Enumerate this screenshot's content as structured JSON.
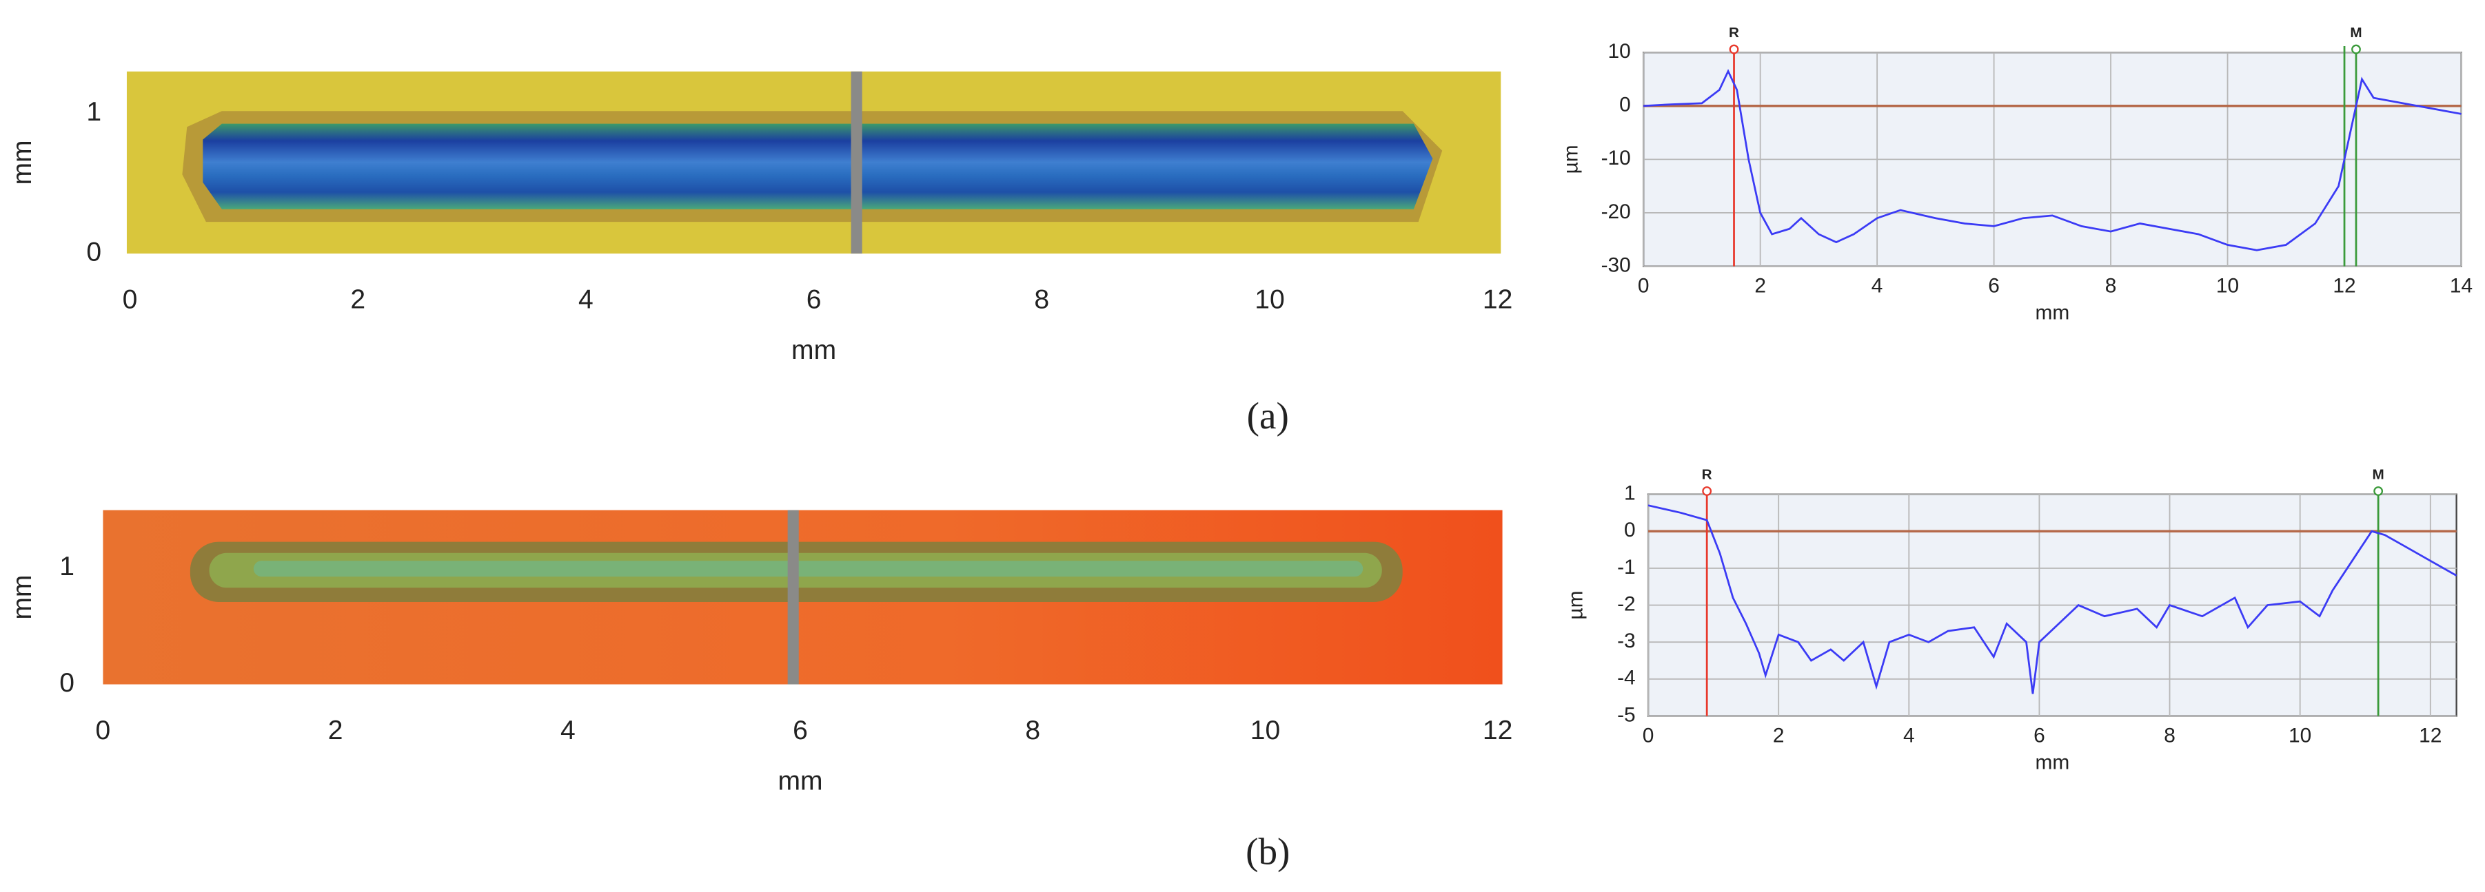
{
  "panel_labels": [
    "(a)",
    "(b)"
  ],
  "chart_data": [
    {
      "type": "image",
      "xlabel": "mm",
      "ylabel": "mm",
      "xlim": [
        0,
        12
      ],
      "xticks": [
        0,
        2,
        4,
        6,
        8,
        10,
        12
      ],
      "ylim": [
        0,
        1.3
      ],
      "yticks": [
        0,
        1
      ]
    },
    {
      "type": "line",
      "xlabel": "mm",
      "ylabel": "µm",
      "xlim": [
        0,
        14
      ],
      "xticks": [
        0,
        2,
        4,
        6,
        8,
        10,
        12,
        14
      ],
      "ylim": [
        -30,
        10
      ],
      "yticks": [
        -30,
        -20,
        -10,
        0,
        10
      ],
      "grid": true,
      "hline": {
        "y": 0,
        "color": "#b5694a"
      },
      "markers": [
        {
          "label": "R",
          "x": 1.55,
          "color": "#e8392c"
        },
        {
          "x": 12.0,
          "color": "#3a9a3a"
        },
        {
          "label": "M",
          "x": 12.2,
          "color": "#3a9a3a"
        }
      ],
      "x": [
        0,
        0.5,
        1.0,
        1.3,
        1.45,
        1.6,
        1.8,
        2.0,
        2.2,
        2.5,
        2.7,
        3.0,
        3.3,
        3.6,
        4.0,
        4.4,
        5.0,
        5.5,
        6.0,
        6.5,
        7.0,
        7.5,
        8.0,
        8.5,
        9.0,
        9.5,
        10.0,
        10.5,
        11.0,
        11.5,
        11.9,
        12.1,
        12.3,
        12.5,
        13.0,
        13.5,
        14.0
      ],
      "series": [
        {
          "color": "#3b3bf5",
          "values": [
            0,
            0.3,
            0.5,
            3,
            6.5,
            3,
            -10,
            -20,
            -24,
            -23,
            -21,
            -24,
            -25.5,
            -24,
            -21,
            -19.5,
            -21,
            -22,
            -22.5,
            -21,
            -20.5,
            -22.5,
            -23.5,
            -22,
            -23,
            -24,
            -26,
            -27,
            -26,
            -22,
            -15,
            -5,
            5,
            1.5,
            0.5,
            -0.5,
            -1.5
          ]
        }
      ]
    },
    {
      "type": "image",
      "xlabel": "mm",
      "ylabel": "mm",
      "xlim": [
        0,
        12
      ],
      "xticks": [
        0,
        2,
        4,
        6,
        8,
        10,
        12
      ],
      "ylim": [
        0,
        1.5
      ],
      "yticks": [
        0,
        1
      ]
    },
    {
      "type": "line",
      "xlabel": "mm",
      "ylabel": "µm",
      "xlim": [
        0,
        12.4
      ],
      "xticks": [
        0,
        2,
        4,
        6,
        8,
        10,
        12
      ],
      "ylim": [
        -5,
        1
      ],
      "yticks": [
        -5,
        -4,
        -3,
        -2,
        -1,
        0,
        1
      ],
      "grid": true,
      "hline": {
        "y": 0,
        "color": "#b5694a"
      },
      "markers": [
        {
          "label": "R",
          "x": 0.9,
          "color": "#e8392c"
        },
        {
          "label": "M",
          "x": 11.2,
          "color": "#3a9a3a"
        }
      ],
      "x": [
        0,
        0.5,
        0.9,
        1.1,
        1.3,
        1.5,
        1.7,
        1.8,
        2.0,
        2.3,
        2.5,
        2.8,
        3.0,
        3.3,
        3.5,
        3.7,
        4.0,
        4.3,
        4.6,
        5.0,
        5.3,
        5.5,
        5.8,
        5.9,
        6.0,
        6.3,
        6.6,
        7.0,
        7.5,
        7.8,
        8.0,
        8.5,
        9.0,
        9.2,
        9.5,
        10.0,
        10.3,
        10.5,
        10.8,
        11.1,
        11.3,
        11.6,
        12.0,
        12.4
      ],
      "series": [
        {
          "color": "#3b3bf5",
          "values": [
            0.7,
            0.5,
            0.3,
            -0.6,
            -1.8,
            -2.5,
            -3.3,
            -3.9,
            -2.8,
            -3,
            -3.5,
            -3.2,
            -3.5,
            -3,
            -4.2,
            -3,
            -2.8,
            -3,
            -2.7,
            -2.6,
            -3.4,
            -2.5,
            -3,
            -4.4,
            -3,
            -2.5,
            -2,
            -2.3,
            -2.1,
            -2.6,
            -2,
            -2.3,
            -1.8,
            -2.6,
            -2,
            -1.9,
            -2.3,
            -1.6,
            -0.8,
            0,
            -0.1,
            -0.4,
            -0.8,
            -1.2
          ]
        }
      ]
    }
  ]
}
